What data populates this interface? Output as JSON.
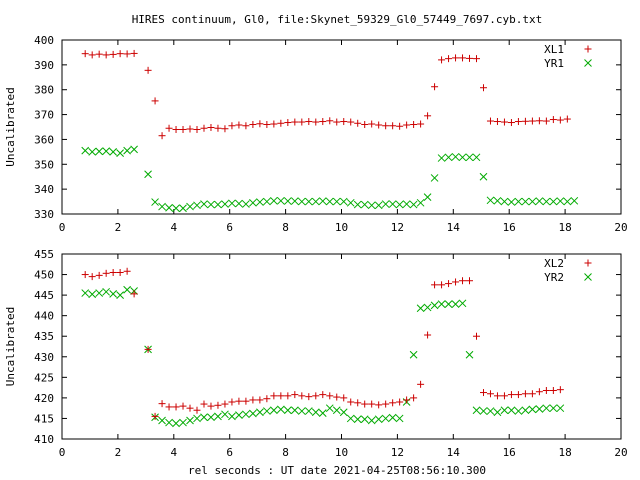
{
  "figure": {
    "title": "HIRES continuum, Gl0, file:Skynet_59329_Gl0_57449_7697.cyb.txt",
    "xlabel": "rel seconds : UT date 2021-04-25T08:56:10.300"
  },
  "colors": {
    "red": "#cc0000",
    "green": "#00aa00"
  },
  "chart_data": [
    {
      "type": "scatter",
      "title": "HIRES continuum, Gl0, file:Skynet_59329_Gl0_57449_7697.cyb.txt",
      "xlabel": "",
      "ylabel": "Uncalibrated",
      "xlim": [
        0,
        20
      ],
      "ylim": [
        330,
        400
      ],
      "xticks": [
        "0",
        "2",
        "4",
        "6",
        "8",
        "10",
        "12",
        "14",
        "16",
        "18",
        "20"
      ],
      "yticks": [
        "330",
        "340",
        "350",
        "360",
        "370",
        "380",
        "390",
        "400"
      ],
      "legend": "top-right",
      "grid": false,
      "x": [
        0.83,
        1.08,
        1.33,
        1.58,
        1.83,
        2.08,
        2.33,
        2.58,
        2.83,
        3.08,
        3.33,
        3.58,
        3.83,
        4.08,
        4.33,
        4.58,
        4.83,
        5.08,
        5.33,
        5.58,
        5.83,
        6.08,
        6.33,
        6.58,
        6.83,
        7.08,
        7.33,
        7.58,
        7.83,
        8.08,
        8.33,
        8.58,
        8.83,
        9.08,
        9.33,
        9.58,
        9.83,
        10.08,
        10.33,
        10.58,
        10.83,
        11.08,
        11.33,
        11.58,
        11.83,
        12.08,
        12.33,
        12.58,
        12.83,
        13.08,
        13.33,
        13.58,
        13.83,
        14.08,
        14.33,
        14.58,
        14.83,
        15.08,
        15.33,
        15.58,
        15.83,
        16.08,
        16.33,
        16.58,
        16.83,
        17.08,
        17.33,
        17.58,
        17.83,
        18.08,
        18.33,
        18.58,
        18.83,
        19.08,
        19.33
      ],
      "series": [
        {
          "name": "XL1",
          "marker": "plus",
          "color": "#cc0000",
          "values": [
            394.5,
            394.0,
            394.3,
            394.0,
            394.2,
            394.5,
            394.4,
            394.6,
            null,
            387.8,
            375.5,
            361.5,
            364.5,
            364.0,
            364.0,
            364.2,
            364.0,
            364.5,
            364.8,
            364.5,
            364.3,
            365.5,
            365.8,
            365.5,
            366.0,
            366.3,
            366.0,
            366.2,
            366.5,
            366.8,
            367.0,
            367.0,
            367.2,
            367.0,
            367.2,
            367.5,
            367.0,
            367.2,
            367.0,
            366.5,
            366.0,
            366.2,
            365.8,
            365.5,
            365.5,
            365.3,
            365.8,
            366.0,
            366.2,
            369.5,
            381.2,
            392.0,
            392.5,
            392.8,
            392.8,
            392.6,
            392.5,
            380.8,
            367.4,
            367.2,
            367.0,
            366.8,
            367.2,
            367.3,
            367.4,
            367.5,
            367.4,
            368.0,
            367.8,
            368.2,
            null,
            null,
            null,
            null,
            null
          ]
        },
        {
          "name": "YR1",
          "marker": "cross",
          "color": "#00aa00",
          "values": [
            355.5,
            355.0,
            355.2,
            355.3,
            355.0,
            354.5,
            355.5,
            356.0,
            null,
            346.0,
            334.8,
            333.0,
            332.5,
            332.3,
            332.3,
            333.0,
            333.5,
            334.0,
            333.8,
            333.8,
            334.0,
            334.3,
            334.2,
            334.0,
            334.5,
            334.8,
            335.0,
            335.3,
            335.3,
            335.2,
            335.2,
            335.0,
            335.0,
            335.0,
            335.2,
            335.0,
            335.0,
            335.0,
            334.5,
            333.8,
            333.8,
            333.5,
            333.5,
            334.0,
            334.0,
            333.8,
            334.0,
            333.8,
            334.5,
            336.8,
            344.5,
            352.5,
            352.8,
            353.0,
            352.8,
            352.8,
            352.8,
            345.0,
            335.5,
            335.3,
            335.0,
            334.8,
            335.0,
            335.0,
            335.0,
            335.2,
            335.0,
            335.0,
            335.2,
            335.0,
            335.3,
            null,
            null,
            null,
            null
          ]
        }
      ]
    },
    {
      "type": "scatter",
      "title": "",
      "xlabel": "rel seconds : UT date 2021-04-25T08:56:10.300",
      "ylabel": "Uncalibrated",
      "xlim": [
        0,
        20
      ],
      "ylim": [
        410,
        455
      ],
      "xticks": [
        "0",
        "2",
        "4",
        "6",
        "8",
        "10",
        "12",
        "14",
        "16",
        "18",
        "20"
      ],
      "yticks": [
        "410",
        "415",
        "420",
        "425",
        "430",
        "435",
        "440",
        "445",
        "450",
        "455"
      ],
      "legend": "top-right",
      "grid": false,
      "x": [
        0.83,
        1.08,
        1.33,
        1.58,
        1.83,
        2.08,
        2.33,
        2.58,
        2.83,
        3.08,
        3.33,
        3.58,
        3.83,
        4.08,
        4.33,
        4.58,
        4.83,
        5.08,
        5.33,
        5.58,
        5.83,
        6.08,
        6.33,
        6.58,
        6.83,
        7.08,
        7.33,
        7.58,
        7.83,
        8.08,
        8.33,
        8.58,
        8.83,
        9.08,
        9.33,
        9.58,
        9.83,
        10.08,
        10.33,
        10.58,
        10.83,
        11.08,
        11.33,
        11.58,
        11.83,
        12.08,
        12.33,
        12.58,
        12.83,
        13.08,
        13.33,
        13.58,
        13.83,
        14.08,
        14.33,
        14.58,
        14.83,
        15.08,
        15.33,
        15.58,
        15.83,
        16.08,
        16.33,
        16.58,
        16.83,
        17.08,
        17.33,
        17.58,
        17.83,
        18.08,
        18.33,
        18.58,
        18.83,
        19.08,
        19.33
      ],
      "series": [
        {
          "name": "XL2",
          "marker": "plus",
          "color": "#cc0000",
          "values": [
            450.0,
            449.5,
            449.8,
            450.3,
            450.5,
            450.5,
            450.8,
            445.3,
            null,
            431.8,
            415.5,
            418.6,
            417.8,
            417.8,
            418.0,
            417.5,
            417.0,
            418.5,
            418.0,
            418.2,
            418.5,
            419.0,
            419.2,
            419.2,
            419.5,
            419.5,
            419.8,
            420.5,
            420.5,
            420.5,
            420.8,
            420.5,
            420.3,
            420.5,
            420.8,
            420.5,
            420.2,
            420.0,
            419.0,
            418.8,
            418.5,
            418.5,
            418.3,
            418.5,
            418.8,
            419.0,
            419.5,
            420.0,
            423.3,
            435.3,
            447.5,
            447.5,
            447.8,
            448.2,
            448.5,
            448.5,
            435.0,
            421.3,
            421.0,
            420.5,
            420.5,
            420.8,
            420.8,
            421.0,
            421.0,
            421.5,
            421.8,
            421.8,
            422.0,
            null,
            null,
            null,
            null,
            null,
            null
          ]
        },
        {
          "name": "YR2",
          "marker": "cross",
          "color": "#00aa00",
          "values": [
            445.5,
            445.2,
            445.5,
            445.8,
            445.3,
            445.0,
            446.3,
            446.0,
            null,
            431.8,
            415.3,
            414.5,
            414.0,
            413.8,
            414.0,
            414.5,
            415.0,
            415.3,
            415.3,
            415.5,
            416.0,
            415.5,
            415.8,
            416.0,
            416.2,
            416.5,
            416.8,
            417.0,
            417.2,
            417.0,
            417.0,
            416.8,
            416.8,
            416.5,
            416.3,
            417.5,
            417.0,
            416.5,
            415.0,
            414.8,
            414.8,
            414.5,
            414.8,
            415.0,
            415.2,
            415.0,
            419.0,
            430.5,
            441.8,
            442.0,
            442.5,
            442.8,
            442.8,
            442.8,
            443.0,
            430.5,
            417.0,
            416.8,
            416.8,
            416.5,
            417.0,
            417.0,
            416.8,
            417.0,
            417.2,
            417.3,
            417.5,
            417.5,
            417.5,
            null,
            null,
            null,
            null,
            null,
            null
          ]
        }
      ]
    }
  ]
}
